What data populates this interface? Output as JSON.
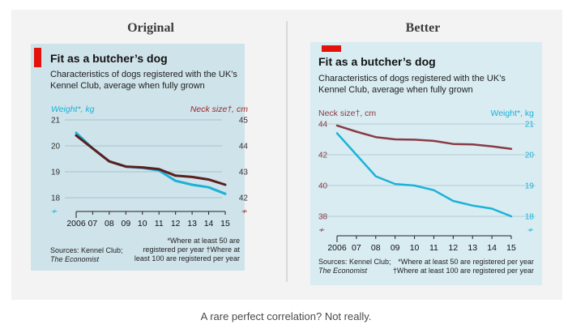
{
  "caption": "A rare perfect correlation? Not really.",
  "colors": {
    "weight": "#1ab2d8",
    "neck_orig": "#5a1f1f",
    "neck_better": "#8b3a44",
    "accent": "#e3120b"
  },
  "chart_data": [
    {
      "panel_heading": "Original",
      "type": "line",
      "title": "Fit as a butcher’s dog",
      "subtitle": "Characteristics of dogs registered with the UK’s Kennel Club, average when fully grown",
      "x": [
        "2006",
        "07",
        "08",
        "09",
        "10",
        "11",
        "12",
        "13",
        "14",
        "15"
      ],
      "series": [
        {
          "name": "Weight*, kg",
          "axis": "left",
          "values": [
            20.5,
            19.9,
            19.4,
            19.2,
            19.15,
            19.05,
            18.65,
            18.5,
            18.4,
            18.15
          ]
        },
        {
          "name": "Neck size†, cm",
          "axis": "right",
          "values": [
            44.4,
            43.9,
            43.4,
            43.2,
            43.17,
            43.1,
            42.85,
            42.8,
            42.7,
            42.5
          ]
        }
      ],
      "left_axis": {
        "label": "Weight*, kg",
        "ylim": [
          18,
          21
        ],
        "ticks": [
          "21",
          "20",
          "19",
          "18"
        ]
      },
      "right_axis": {
        "label": "Neck size†, cm",
        "ylim": [
          42,
          45
        ],
        "ticks": [
          "45",
          "44",
          "43",
          "42"
        ]
      },
      "source": [
        "Sources: Kennel Club;",
        "The Economist"
      ],
      "footnotes": [
        "*Where at least 50 are",
        "registered per year  †Where at",
        "least 100 are registered per year"
      ]
    },
    {
      "panel_heading": "Better",
      "type": "line",
      "title": "Fit as a butcher’s dog",
      "subtitle": "Characteristics of dogs registered with the UK’s Kennel Club, average when fully grown",
      "x": [
        "2006",
        "07",
        "08",
        "09",
        "10",
        "11",
        "12",
        "13",
        "14",
        "15"
      ],
      "series": [
        {
          "name": "Neck size†, cm",
          "axis": "left",
          "values": [
            43.9,
            43.5,
            43.15,
            43.0,
            42.98,
            42.9,
            42.7,
            42.67,
            42.55,
            42.38
          ]
        },
        {
          "name": "Weight*, kg",
          "axis": "right",
          "values": [
            20.7,
            20.0,
            19.3,
            19.05,
            19.0,
            18.85,
            18.5,
            18.35,
            18.25,
            18.0
          ]
        }
      ],
      "left_axis": {
        "label": "Neck size†, cm",
        "ylim": [
          38,
          44
        ],
        "ticks": [
          "44",
          "42",
          "40",
          "38"
        ]
      },
      "right_axis": {
        "label": "Weight*, kg",
        "ylim": [
          18,
          21
        ],
        "ticks": [
          "21",
          "20",
          "19",
          "18"
        ]
      },
      "source": [
        "Sources: Kennel Club;",
        "The Economist"
      ],
      "footnotes": [
        "*Where at least 50 are registered per year",
        "†Where at least 100 are registered per year"
      ]
    }
  ]
}
